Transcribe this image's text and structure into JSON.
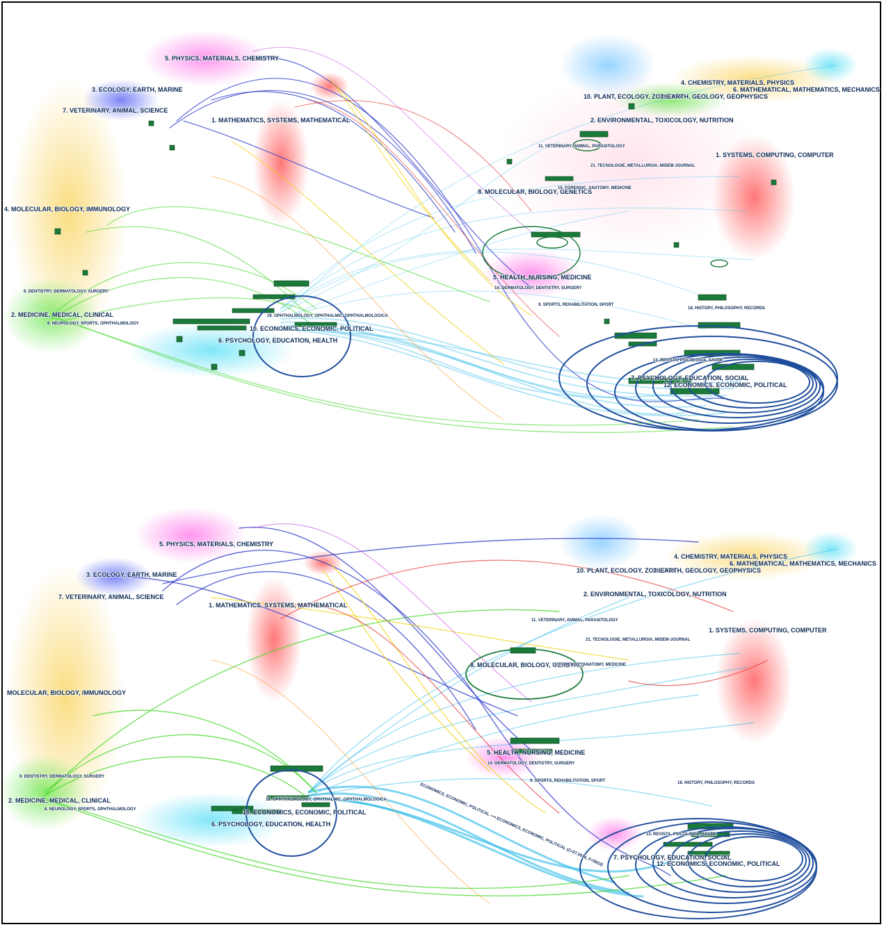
{
  "colors": {
    "frame": "#000000",
    "label": "#0c2a55",
    "green_node": "#1a7a3a",
    "dark_blue_ring": "#1f4e9c",
    "cyan_flow": "#27b8e8"
  },
  "panels": [
    {
      "id": "top",
      "left_labels": {
        "physics": "5. PHYSICS, MATERIALS, CHEMISTRY",
        "ecology": "3. ECOLOGY, EARTH, MARINE",
        "veterinary": "7. VETERINARY, ANIMAL, SCIENCE",
        "mathematics": "1. MATHEMATICS, SYSTEMS, MATHEMATICAL",
        "molecular": "4. MOLECULAR, BIOLOGY, IMMUNOLOGY",
        "dentistry": "9. DENTISTRY, DERMATOLOGY, SURGERY",
        "medicine": "2. MEDICINE, MEDICAL, CLINICAL",
        "neurology": "8. NEUROLOGY, SPORTS, OPHTHALMOLOGY",
        "ophthalmology": "16. OPHTHALMOLOGY, OPHTHALMIC, OPHTHALMOLOGICA",
        "economics": "10. ECONOMICS, ECONOMIC, POLITICAL",
        "psychology": "6. PSYCHOLOGY, EDUCATION, HEALTH"
      },
      "right_labels": {
        "chemistry": "4. CHEMISTRY, MATERIALS, PHYSICS",
        "math_mech": "6. MATHEMATICAL, MATHEMATICS, MECHANICS",
        "plant": "10. PLANT, ECOLOGY, ZOOLOGY",
        "earth": "3. EARTH, GEOLOGY, GEOPHYSICS",
        "environmental": "2. ENVIRONMENTAL, TOXICOLOGY, NUTRITION",
        "veterinary": "11. VETERINARY, ANIMAL, PARASITOLOGY",
        "systems": "1. SYSTEMS, COMPUTING, COMPUTER",
        "tecnologie": "21. TECNOLOGIE, METALLURGIA, MIDEM-JOURNAL",
        "molecular": "8. MOLECULAR, BIOLOGY, GENETICS",
        "forensic": "15. FORENSIC, ANATOMY, MEDICINE",
        "health": "5. HEALTH, NURSING, MEDICINE",
        "dermatology": "14. DERMATOLOGY, DENTISTRY, SURGERY",
        "sports": "9. SPORTS, REHABILITATION, SPORT",
        "history": "18. HISTORY, PHILOSOPHY, RECORDS",
        "revista": "13. REVISTA, PSICOLOGIA, SAUDE",
        "psychology": "7. PSYCHOLOGY, EDUCATION, SOCIAL",
        "economics": "12. ECONOMICS, ECONOMIC, POLITICAL"
      }
    },
    {
      "id": "bottom",
      "left_labels": {
        "physics": "5. PHYSICS, MATERIALS, CHEMISTRY",
        "ecology": "3. ECOLOGY, EARTH, MARINE",
        "veterinary": "7. VETERINARY, ANIMAL, SCIENCE",
        "mathematics": "1. MATHEMATICS, SYSTEMS, MATHEMATICAL",
        "molecular": "MOLECULAR, BIOLOGY, IMMUNOLOGY",
        "dentistry": "9. DENTISTRY, DERMATOLOGY, SURGERY",
        "medicine": "2. MEDICINE, MEDICAL, CLINICAL",
        "neurology": "8. NEUROLOGY, SPORTS, OPHTHALMOLOGY",
        "ophthalmology": "16. OPHTHALMOLOGY, OPHTHALMIC, OPHTHALMOLOGICA",
        "economics": "10. ECONOMICS, ECONOMIC, POLITICAL",
        "psychology": "6. PSYCHOLOGY, EDUCATION, HEALTH"
      },
      "right_labels": {
        "chemistry": "4. CHEMISTRY, MATERIALS, PHYSICS",
        "math_mech": "6. MATHEMATICAL, MATHEMATICS, MECHANICS",
        "plant": "10. PLANT, ECOLOGY, ZOOLOGY",
        "earth": "3. EARTH, GEOLOGY, GEOPHYSICS",
        "environmental": "2. ENVIRONMENTAL, TOXICOLOGY, NUTRITION",
        "veterinary": "11. VETERINARY, ANIMAL, PARASITOLOGY",
        "systems": "1. SYSTEMS, COMPUTING, COMPUTER",
        "tecnologie": "21. TECNOLOGIE, METALLURGIA, MIDEM-JOURNAL",
        "molecular": "8. MOLECULAR, BIOLOGY, GENETICS",
        "forensic": "15. FORENSIC, ANATOMY, MEDICINE",
        "health": "5. HEALTH, NURSING, MEDICINE",
        "dermatology": "14. DERMATOLOGY, DENTISTRY, SURGERY",
        "sports": "9. SPORTS, REHABILITATION, SPORT",
        "history": "18. HISTORY, PHILOSOPHY, RECORDS",
        "revista": "13. REVISTA, PSICOLOGIA, SAUDE",
        "psychology": "7. PSYCHOLOGY, EDUCATION, SOCIAL",
        "economics": "12. ECONOMICS, ECONOMIC, POLITICAL"
      },
      "flow_label": "ECONOMICS, ECONOMIC, POLITICAL ⟶ ECONOMICS, ECONOMIC, POLITICAL (Z=27.0036, F=5833)"
    }
  ]
}
